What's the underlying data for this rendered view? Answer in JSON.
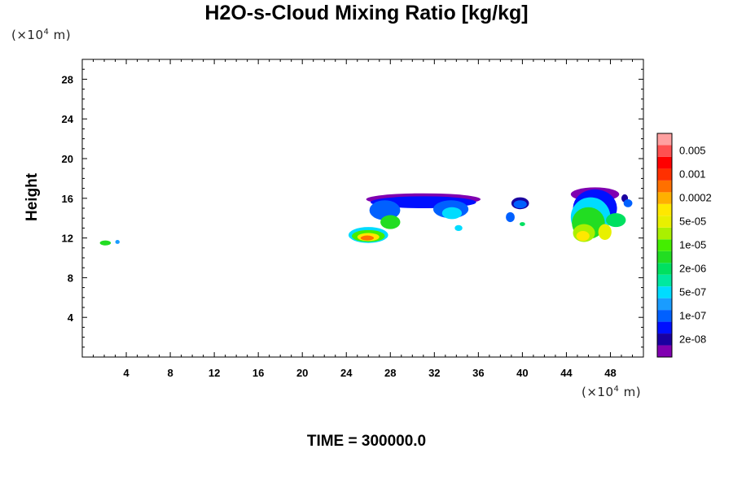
{
  "chart_data": {
    "type": "heatmap",
    "title": "H2O-s-Cloud Mixing Ratio [kg/kg]",
    "ylabel": "Height",
    "x_unit": {
      "prefix": "(×10",
      "exp": "4",
      "suffix": " m)"
    },
    "y_unit": {
      "prefix": "(×10",
      "exp": "4",
      "suffix": " m)"
    },
    "footer": "TIME = 300000.0",
    "xlim": [
      0,
      51
    ],
    "ylim": [
      0,
      30
    ],
    "x_ticks": [
      4,
      8,
      12,
      16,
      20,
      24,
      28,
      32,
      36,
      40,
      44,
      48
    ],
    "y_ticks": [
      4,
      8,
      12,
      16,
      20,
      24,
      28
    ],
    "colorbar": {
      "levels": [
        {
          "label": "",
          "color": "#8000b0"
        },
        {
          "label": "2e-08",
          "color": "#1a00a0"
        },
        {
          "label": "",
          "color": "#0010ff"
        },
        {
          "label": "1e-07",
          "color": "#0060ff"
        },
        {
          "label": "",
          "color": "#1a9cff"
        },
        {
          "label": "5e-07",
          "color": "#00dcff"
        },
        {
          "label": "",
          "color": "#00e8a0"
        },
        {
          "label": "2e-06",
          "color": "#00e060"
        },
        {
          "label": "",
          "color": "#22dd22"
        },
        {
          "label": "1e-05",
          "color": "#44ee00"
        },
        {
          "label": "",
          "color": "#aaf000"
        },
        {
          "label": "5e-05",
          "color": "#e8f000"
        },
        {
          "label": "",
          "color": "#ffe800"
        },
        {
          "label": "0.0002",
          "color": "#ffb000"
        },
        {
          "label": "",
          "color": "#ff7000"
        },
        {
          "label": "0.001",
          "color": "#ff3000"
        },
        {
          "label": "",
          "color": "#ff0000"
        },
        {
          "label": "0.005",
          "color": "#ff5050"
        },
        {
          "label": "",
          "color": "#ffa0a0"
        }
      ]
    },
    "regions": [
      {
        "x": 2.1,
        "y": 11.5,
        "rx": 0.5,
        "ry": 0.25,
        "level": 8
      },
      {
        "x": 3.2,
        "y": 11.6,
        "rx": 0.2,
        "ry": 0.2,
        "level": 4
      },
      {
        "x": 31.0,
        "y": 15.9,
        "rx": 5.2,
        "ry": 0.6,
        "level": 0
      },
      {
        "x": 31.0,
        "y": 15.6,
        "rx": 4.8,
        "ry": 0.6,
        "level": 2
      },
      {
        "x": 27.5,
        "y": 14.8,
        "rx": 1.4,
        "ry": 1.0,
        "level": 3
      },
      {
        "x": 33.5,
        "y": 14.9,
        "rx": 1.6,
        "ry": 0.9,
        "level": 3
      },
      {
        "x": 33.6,
        "y": 14.5,
        "rx": 0.9,
        "ry": 0.6,
        "level": 5
      },
      {
        "x": 34.2,
        "y": 13.0,
        "rx": 0.35,
        "ry": 0.3,
        "level": 5
      },
      {
        "x": 28.0,
        "y": 13.6,
        "rx": 0.9,
        "ry": 0.7,
        "level": 8
      },
      {
        "x": 26.0,
        "y": 12.3,
        "rx": 1.8,
        "ry": 0.8,
        "level": 5
      },
      {
        "x": 26.0,
        "y": 12.2,
        "rx": 1.5,
        "ry": 0.6,
        "level": 9
      },
      {
        "x": 26.0,
        "y": 12.1,
        "rx": 1.0,
        "ry": 0.4,
        "level": 12
      },
      {
        "x": 25.9,
        "y": 12.0,
        "rx": 0.6,
        "ry": 0.25,
        "level": 14
      },
      {
        "x": 39.8,
        "y": 15.5,
        "rx": 0.8,
        "ry": 0.6,
        "level": 1
      },
      {
        "x": 39.8,
        "y": 15.4,
        "rx": 0.6,
        "ry": 0.4,
        "level": 3
      },
      {
        "x": 38.9,
        "y": 14.1,
        "rx": 0.4,
        "ry": 0.5,
        "level": 3
      },
      {
        "x": 40.0,
        "y": 13.4,
        "rx": 0.25,
        "ry": 0.2,
        "level": 7
      },
      {
        "x": 46.6,
        "y": 16.4,
        "rx": 2.2,
        "ry": 0.7,
        "level": 0
      },
      {
        "x": 46.6,
        "y": 15.0,
        "rx": 2.0,
        "ry": 1.9,
        "level": 2
      },
      {
        "x": 46.2,
        "y": 14.1,
        "rx": 1.8,
        "ry": 2.0,
        "level": 5
      },
      {
        "x": 46.0,
        "y": 13.5,
        "rx": 1.5,
        "ry": 1.6,
        "level": 8
      },
      {
        "x": 45.6,
        "y": 12.5,
        "rx": 1.0,
        "ry": 0.9,
        "level": 10
      },
      {
        "x": 45.5,
        "y": 12.2,
        "rx": 0.6,
        "ry": 0.5,
        "level": 12
      },
      {
        "x": 47.5,
        "y": 12.6,
        "rx": 0.6,
        "ry": 0.8,
        "level": 11
      },
      {
        "x": 48.5,
        "y": 13.8,
        "rx": 0.9,
        "ry": 0.7,
        "level": 7
      },
      {
        "x": 49.3,
        "y": 16.0,
        "rx": 0.3,
        "ry": 0.4,
        "level": 1
      },
      {
        "x": 49.6,
        "y": 15.5,
        "rx": 0.4,
        "ry": 0.4,
        "level": 3
      }
    ]
  }
}
